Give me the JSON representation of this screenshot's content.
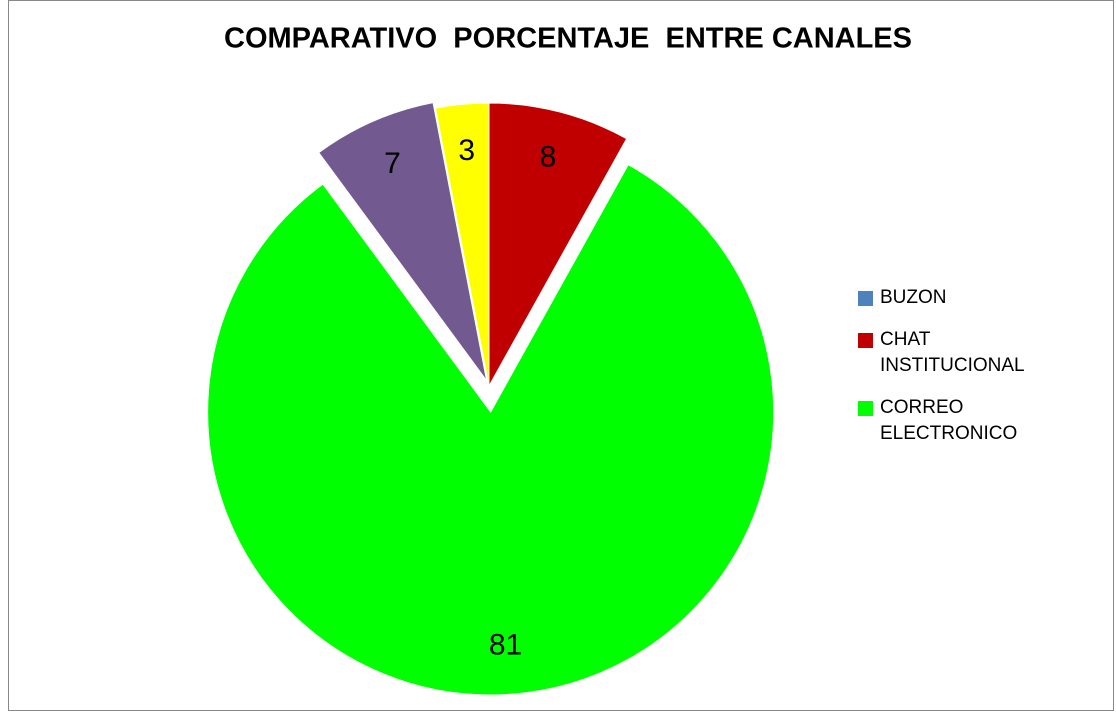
{
  "chart_data": {
    "type": "pie",
    "title": "COMPARATIVO  PORCENTAJE  ENTRE CANALES",
    "categories": [
      "BUZON",
      "CHAT INSTITUCIONAL",
      "CORREO ELECTRONICO",
      null,
      null
    ],
    "values": [
      0,
      8,
      81,
      7,
      3
    ],
    "colors": [
      "#4f81bd",
      "#c00000",
      "#00ff00",
      "#725990",
      "#ffff00"
    ],
    "legend": "right"
  }
}
